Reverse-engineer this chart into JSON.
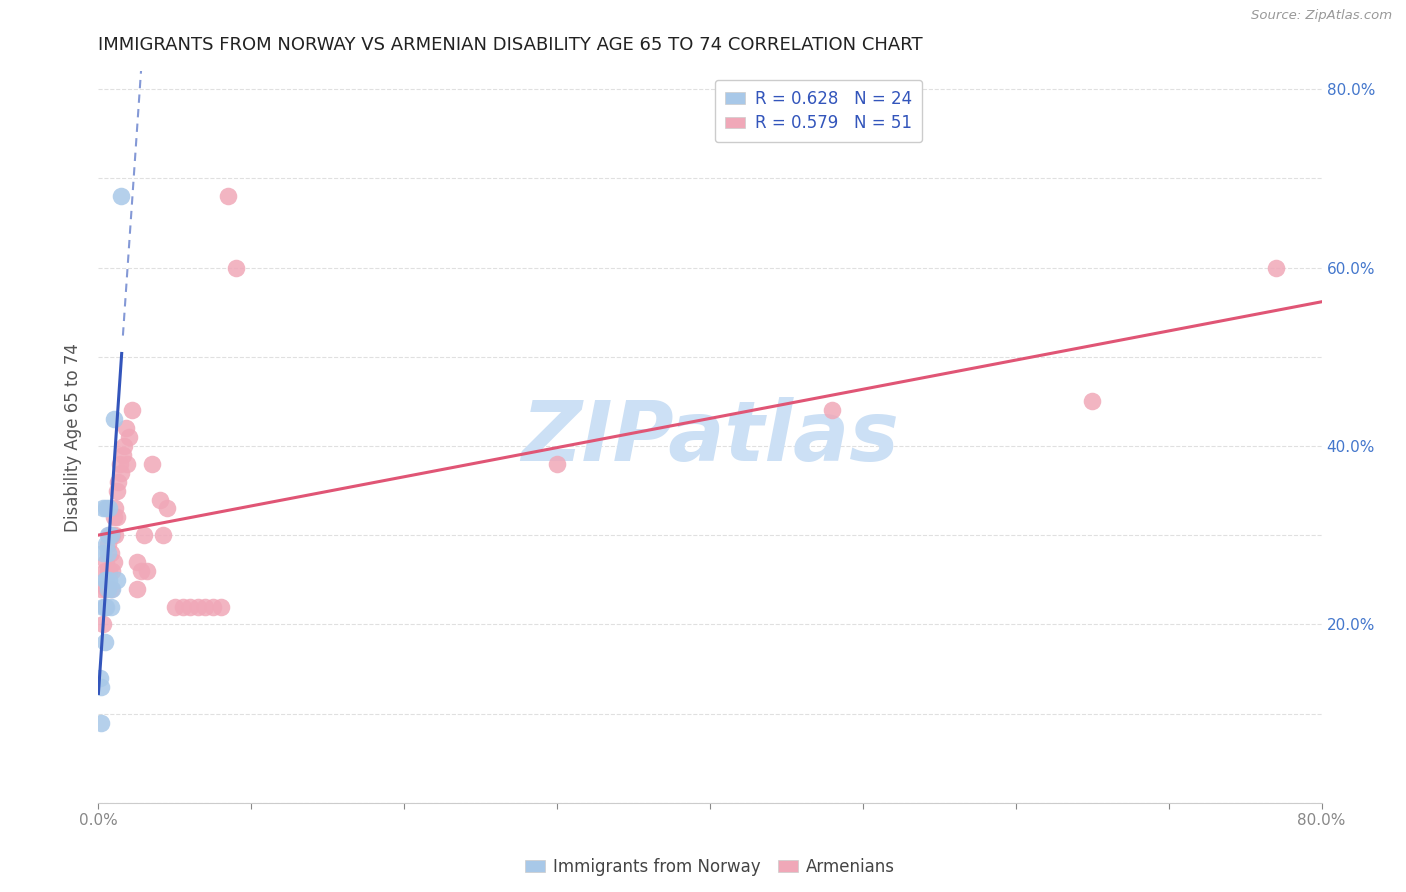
{
  "title": "IMMIGRANTS FROM NORWAY VS ARMENIAN DISABILITY AGE 65 TO 74 CORRELATION CHART",
  "source": "Source: ZipAtlas.com",
  "ylabel": "Disability Age 65 to 74",
  "xlim": [
    0,
    0.8
  ],
  "ylim": [
    0,
    0.82
  ],
  "norway_color": "#a8c8e8",
  "armenia_color": "#f0a8b8",
  "norway_edge_color": "#8ab0d8",
  "armenia_edge_color": "#e088a0",
  "norway_line_color": "#3355bb",
  "armenia_line_color": "#e05575",
  "norway_R": 0.628,
  "norway_N": 24,
  "armenia_R": 0.579,
  "armenia_N": 51,
  "norway_scatter_x": [
    0.001,
    0.002,
    0.002,
    0.003,
    0.003,
    0.003,
    0.004,
    0.004,
    0.004,
    0.005,
    0.005,
    0.005,
    0.005,
    0.006,
    0.006,
    0.006,
    0.007,
    0.007,
    0.008,
    0.008,
    0.009,
    0.01,
    0.012,
    0.015
  ],
  "norway_scatter_y": [
    0.14,
    0.13,
    0.09,
    0.33,
    0.28,
    0.22,
    0.25,
    0.22,
    0.18,
    0.33,
    0.29,
    0.25,
    0.22,
    0.3,
    0.28,
    0.24,
    0.33,
    0.25,
    0.3,
    0.22,
    0.24,
    0.43,
    0.25,
    0.68
  ],
  "armenia_scatter_x": [
    0.002,
    0.003,
    0.004,
    0.004,
    0.005,
    0.005,
    0.006,
    0.006,
    0.007,
    0.007,
    0.008,
    0.008,
    0.009,
    0.009,
    0.01,
    0.01,
    0.011,
    0.011,
    0.012,
    0.012,
    0.013,
    0.014,
    0.015,
    0.016,
    0.017,
    0.018,
    0.019,
    0.02,
    0.022,
    0.025,
    0.025,
    0.028,
    0.03,
    0.032,
    0.035,
    0.04,
    0.042,
    0.045,
    0.05,
    0.055,
    0.06,
    0.065,
    0.07,
    0.075,
    0.08,
    0.085,
    0.09,
    0.3,
    0.48,
    0.65,
    0.77
  ],
  "armenia_scatter_y": [
    0.24,
    0.2,
    0.26,
    0.22,
    0.27,
    0.24,
    0.29,
    0.26,
    0.3,
    0.26,
    0.28,
    0.24,
    0.3,
    0.26,
    0.32,
    0.27,
    0.33,
    0.3,
    0.35,
    0.32,
    0.36,
    0.38,
    0.37,
    0.39,
    0.4,
    0.42,
    0.38,
    0.41,
    0.44,
    0.24,
    0.27,
    0.26,
    0.3,
    0.26,
    0.38,
    0.34,
    0.3,
    0.33,
    0.22,
    0.22,
    0.22,
    0.22,
    0.22,
    0.22,
    0.22,
    0.68,
    0.6,
    0.38,
    0.44,
    0.45,
    0.6
  ],
  "watermark_text": "ZIPatlas",
  "watermark_color": "#cce0f5",
  "background_color": "#ffffff",
  "grid_color": "#e0e0e0",
  "axis_label_color": "#555555",
  "tick_label_color": "#4477cc",
  "bottom_tick_color": "#888888",
  "legend_text_color": "#3355bb",
  "legend_border_color": "#cccccc",
  "source_color": "#999999"
}
